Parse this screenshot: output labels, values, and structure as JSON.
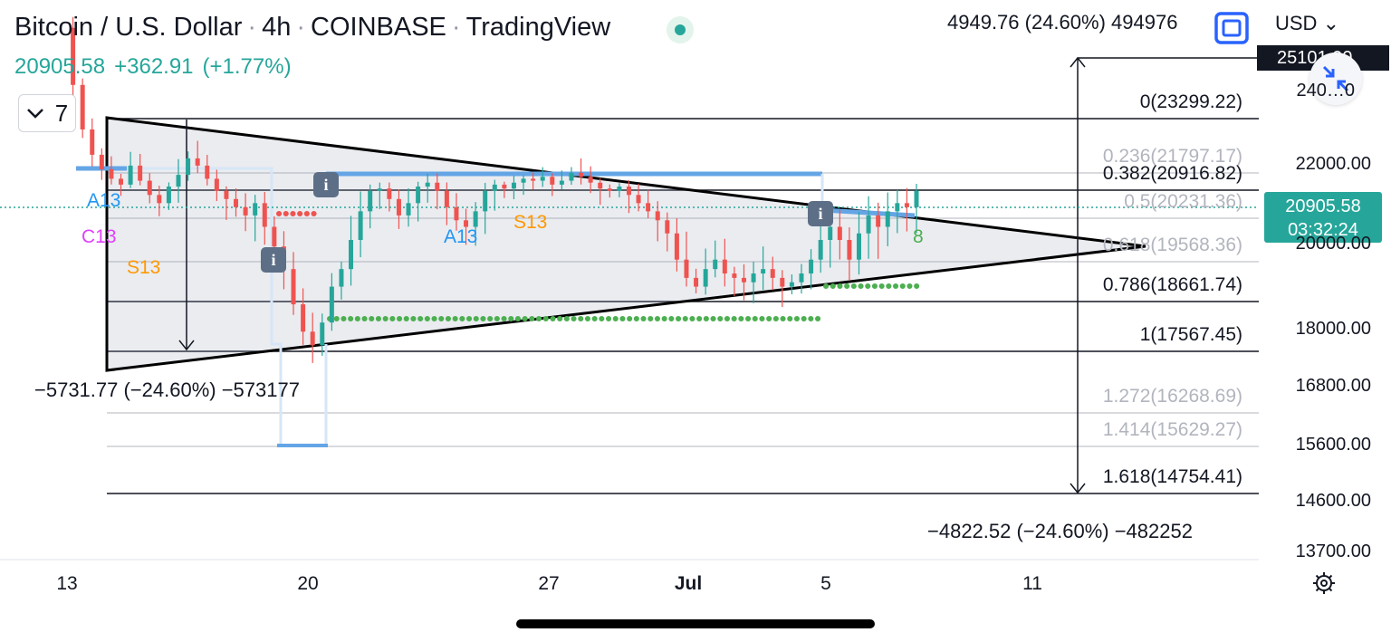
{
  "header": {
    "symbol": "Bitcoin / U.S. Dollar",
    "interval": "4h",
    "exchange": "COINBASE",
    "source": "TradingView",
    "price": "20905.58",
    "change": "+362.91",
    "change_pct": "(+1.77%)",
    "collapse_count": "7",
    "measure_top": "4949.76 (24.60%) 494976",
    "currency": "USD",
    "top_price_label": "25101.00"
  },
  "colors": {
    "up": "#26a69a",
    "down": "#ef5350",
    "accent": "#2962ff",
    "fib_line": "#131722"
  },
  "icons": {
    "fullscreen": "fullscreen-icon",
    "shrink": "shrink-icon",
    "settings": "gear-icon",
    "collapse": "chevron-down-icon"
  },
  "price_tag": {
    "price": "20905.58",
    "countdown": "03:32:24"
  },
  "measures": {
    "left": "−5731.77 (−24.60%) −573177",
    "right": "−4822.52 (−24.60%) −482252"
  },
  "annotations": {
    "a13_left": "A13",
    "c13": "C13",
    "s13_left": "S13",
    "a13_mid": "A13",
    "s13_mid": "S13",
    "count_8": "8",
    "info": "i"
  },
  "chart_data": {
    "type": "candlestick",
    "title": "Bitcoin / U.S. Dollar · 4h · COINBASE",
    "x_ticks": [
      "13",
      "20",
      "27",
      "Jul",
      "5",
      "11"
    ],
    "y_ticks": [
      24000,
      22000,
      20000,
      18000,
      16800,
      15600,
      14600,
      13700
    ],
    "y_tick_labels": [
      "240…0",
      "22000.00",
      "20000.00",
      "18000.00",
      "16800.00",
      "15600.00",
      "14600.00",
      "13700.00"
    ],
    "ylim": [
      13700,
      25100
    ],
    "last_price": 20905.58,
    "fib_levels": [
      {
        "ratio": "0",
        "price": 23299.22,
        "label": "0(23299.22)"
      },
      {
        "ratio": "0.236",
        "price": 21797.17,
        "label": "0.236(21797.17)"
      },
      {
        "ratio": "0.382",
        "price": 20916.82,
        "label": "0.382(20916.82)"
      },
      {
        "ratio": "0.5",
        "price": 20231.36,
        "label": "0.5(20231.36)"
      },
      {
        "ratio": "0.618",
        "price": 19568.36,
        "label": "0.618(19568.36)"
      },
      {
        "ratio": "0.786",
        "price": 18661.74,
        "label": "0.786(18661.74)"
      },
      {
        "ratio": "1",
        "price": 17567.45,
        "label": "1(17567.45)"
      },
      {
        "ratio": "1.272",
        "price": 16268.69,
        "label": "1.272(16268.69)"
      },
      {
        "ratio": "1.414",
        "price": 15629.27,
        "label": "1.414(15629.27)"
      },
      {
        "ratio": "1.618",
        "price": 14754.41,
        "label": "1.618(14754.41)"
      }
    ],
    "candles_close_path": [
      26000,
      24300,
      23000,
      22300,
      21900,
      21500,
      21200,
      22000,
      21400,
      20800,
      20600,
      21100,
      21700,
      22200,
      22000,
      21500,
      20900,
      20700,
      20500,
      20300,
      20600,
      20100,
      19800,
      19400,
      18600,
      18000,
      17700,
      18200,
      19000,
      19400,
      19900,
      20400,
      20900,
      21000,
      20700,
      20300,
      20600,
      21100,
      21300,
      20900,
      20500,
      20200,
      20100,
      20400,
      20900,
      21200,
      21000,
      21300,
      21500,
      21400,
      21600,
      21200,
      21400,
      21800,
      21600,
      21300,
      21000,
      20900,
      21100,
      20800,
      20600,
      20400,
      20200,
      20000,
      19600,
      19200,
      19000,
      19400,
      19600,
      19300,
      19200,
      19100,
      19300,
      19400,
      19200,
      19000,
      19100,
      19300,
      19600,
      19900,
      20100,
      19900,
      19600,
      20000,
      20300,
      20100,
      20400,
      20600,
      20500,
      20900
    ]
  }
}
